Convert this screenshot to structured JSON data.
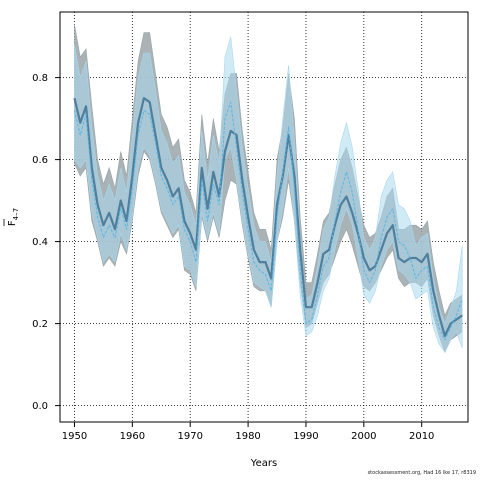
{
  "chart_data": {
    "type": "line",
    "xlabel": "Years",
    "ylabel_main": "F",
    "ylabel_sub": "4–7",
    "xlim": [
      1947.5,
      2018
    ],
    "ylim": [
      -0.04,
      0.96
    ],
    "xticks": [
      1950,
      1960,
      1970,
      1980,
      1990,
      2000,
      2010
    ],
    "yticks": [
      0.0,
      0.2,
      0.4,
      0.6,
      0.8
    ],
    "ytick_labels": [
      "0.0",
      "0.2",
      "0.4",
      "0.6",
      "0.8"
    ],
    "grid": true,
    "colors": {
      "grey_band": "#9aa4a8",
      "grey_line": "#4f7f9c",
      "blue_band": "#a9d8ee",
      "blue_line": "#58b6e6"
    },
    "years": [
      1950,
      1951,
      1952,
      1953,
      1954,
      1955,
      1956,
      1957,
      1958,
      1959,
      1960,
      1961,
      1962,
      1963,
      1964,
      1965,
      1966,
      1967,
      1968,
      1969,
      1970,
      1971,
      1972,
      1973,
      1974,
      1975,
      1976,
      1977,
      1978,
      1979,
      1980,
      1981,
      1982,
      1983,
      1984,
      1985,
      1986,
      1987,
      1988,
      1989,
      1990,
      1991,
      1992,
      1993,
      1994,
      1995,
      1996,
      1997,
      1998,
      1999,
      2000,
      2001,
      2002,
      2003,
      2004,
      2005,
      2006,
      2007,
      2008,
      2009,
      2010,
      2011,
      2012,
      2013,
      2014,
      2015,
      2016,
      2017
    ],
    "series": [
      {
        "key": "grey",
        "values": [
          0.75,
          0.69,
          0.73,
          0.58,
          0.49,
          0.44,
          0.47,
          0.43,
          0.5,
          0.45,
          0.56,
          0.69,
          0.75,
          0.74,
          0.66,
          0.58,
          0.55,
          0.51,
          0.53,
          0.45,
          0.42,
          0.38,
          0.58,
          0.48,
          0.57,
          0.51,
          0.62,
          0.67,
          0.66,
          0.55,
          0.46,
          0.38,
          0.35,
          0.35,
          0.31,
          0.49,
          0.56,
          0.66,
          0.56,
          0.38,
          0.24,
          0.24,
          0.3,
          0.37,
          0.38,
          0.44,
          0.49,
          0.51,
          0.47,
          0.42,
          0.36,
          0.33,
          0.34,
          0.38,
          0.42,
          0.44,
          0.36,
          0.35,
          0.36,
          0.36,
          0.35,
          0.37,
          0.28,
          0.22,
          0.17,
          0.2,
          0.21,
          0.22
        ],
        "lower": [
          0.59,
          0.56,
          0.58,
          0.45,
          0.4,
          0.34,
          0.36,
          0.34,
          0.4,
          0.37,
          0.45,
          0.56,
          0.62,
          0.6,
          0.54,
          0.47,
          0.44,
          0.41,
          0.43,
          0.33,
          0.32,
          0.28,
          0.46,
          0.4,
          0.46,
          0.41,
          0.5,
          0.55,
          0.54,
          0.44,
          0.36,
          0.29,
          0.28,
          0.28,
          0.24,
          0.4,
          0.46,
          0.55,
          0.45,
          0.3,
          0.19,
          0.2,
          0.25,
          0.3,
          0.32,
          0.36,
          0.4,
          0.43,
          0.39,
          0.34,
          0.29,
          0.28,
          0.3,
          0.33,
          0.36,
          0.38,
          0.31,
          0.29,
          0.3,
          0.3,
          0.29,
          0.31,
          0.22,
          0.17,
          0.13,
          0.16,
          0.17,
          0.18
        ],
        "upper": [
          0.93,
          0.85,
          0.87,
          0.73,
          0.6,
          0.54,
          0.58,
          0.53,
          0.62,
          0.56,
          0.7,
          0.84,
          0.91,
          0.91,
          0.81,
          0.71,
          0.68,
          0.63,
          0.65,
          0.55,
          0.52,
          0.47,
          0.71,
          0.59,
          0.7,
          0.62,
          0.76,
          0.81,
          0.81,
          0.67,
          0.57,
          0.47,
          0.43,
          0.43,
          0.38,
          0.6,
          0.68,
          0.81,
          0.7,
          0.46,
          0.3,
          0.3,
          0.37,
          0.45,
          0.47,
          0.54,
          0.6,
          0.63,
          0.58,
          0.51,
          0.44,
          0.41,
          0.42,
          0.46,
          0.51,
          0.53,
          0.43,
          0.43,
          0.44,
          0.44,
          0.43,
          0.45,
          0.35,
          0.28,
          0.22,
          0.25,
          0.26,
          0.27
        ]
      },
      {
        "key": "blue",
        "values": [
          0.72,
          0.66,
          0.71,
          0.55,
          0.46,
          0.41,
          0.44,
          0.41,
          0.48,
          0.43,
          0.53,
          0.66,
          0.72,
          0.71,
          0.64,
          0.56,
          0.53,
          0.49,
          0.51,
          0.43,
          0.4,
          0.35,
          0.55,
          0.45,
          0.54,
          0.49,
          0.7,
          0.74,
          0.63,
          0.52,
          0.43,
          0.35,
          0.33,
          0.32,
          0.28,
          0.46,
          0.57,
          0.68,
          0.53,
          0.33,
          0.2,
          0.21,
          0.27,
          0.34,
          0.36,
          0.45,
          0.52,
          0.57,
          0.52,
          0.43,
          0.33,
          0.3,
          0.33,
          0.41,
          0.46,
          0.48,
          0.4,
          0.39,
          0.36,
          0.31,
          0.33,
          0.34,
          0.24,
          0.19,
          0.16,
          0.19,
          0.22,
          0.26
        ],
        "lower": [
          0.6,
          0.58,
          0.6,
          0.47,
          0.41,
          0.35,
          0.37,
          0.35,
          0.42,
          0.38,
          0.46,
          0.58,
          0.63,
          0.61,
          0.55,
          0.48,
          0.45,
          0.42,
          0.44,
          0.34,
          0.33,
          0.29,
          0.47,
          0.41,
          0.47,
          0.42,
          0.6,
          0.63,
          0.55,
          0.45,
          0.37,
          0.3,
          0.29,
          0.28,
          0.24,
          0.4,
          0.48,
          0.58,
          0.45,
          0.27,
          0.17,
          0.18,
          0.22,
          0.28,
          0.31,
          0.38,
          0.44,
          0.48,
          0.44,
          0.36,
          0.27,
          0.25,
          0.28,
          0.34,
          0.38,
          0.4,
          0.33,
          0.32,
          0.3,
          0.26,
          0.27,
          0.28,
          0.19,
          0.15,
          0.13,
          0.16,
          0.18,
          0.14
        ],
        "upper": [
          0.88,
          0.8,
          0.84,
          0.68,
          0.56,
          0.5,
          0.54,
          0.5,
          0.58,
          0.52,
          0.66,
          0.8,
          0.86,
          0.86,
          0.77,
          0.67,
          0.64,
          0.59,
          0.61,
          0.52,
          0.49,
          0.44,
          0.67,
          0.55,
          0.66,
          0.59,
          0.85,
          0.9,
          0.77,
          0.63,
          0.53,
          0.44,
          0.4,
          0.4,
          0.35,
          0.56,
          0.7,
          0.83,
          0.65,
          0.41,
          0.26,
          0.27,
          0.34,
          0.43,
          0.46,
          0.56,
          0.64,
          0.69,
          0.63,
          0.53,
          0.41,
          0.38,
          0.41,
          0.51,
          0.55,
          0.57,
          0.49,
          0.48,
          0.45,
          0.39,
          0.41,
          0.42,
          0.31,
          0.24,
          0.2,
          0.24,
          0.28,
          0.39
        ]
      }
    ]
  },
  "footer": {
    "credit": "stockassessment.org, Had 16 lke 17, r8319"
  }
}
